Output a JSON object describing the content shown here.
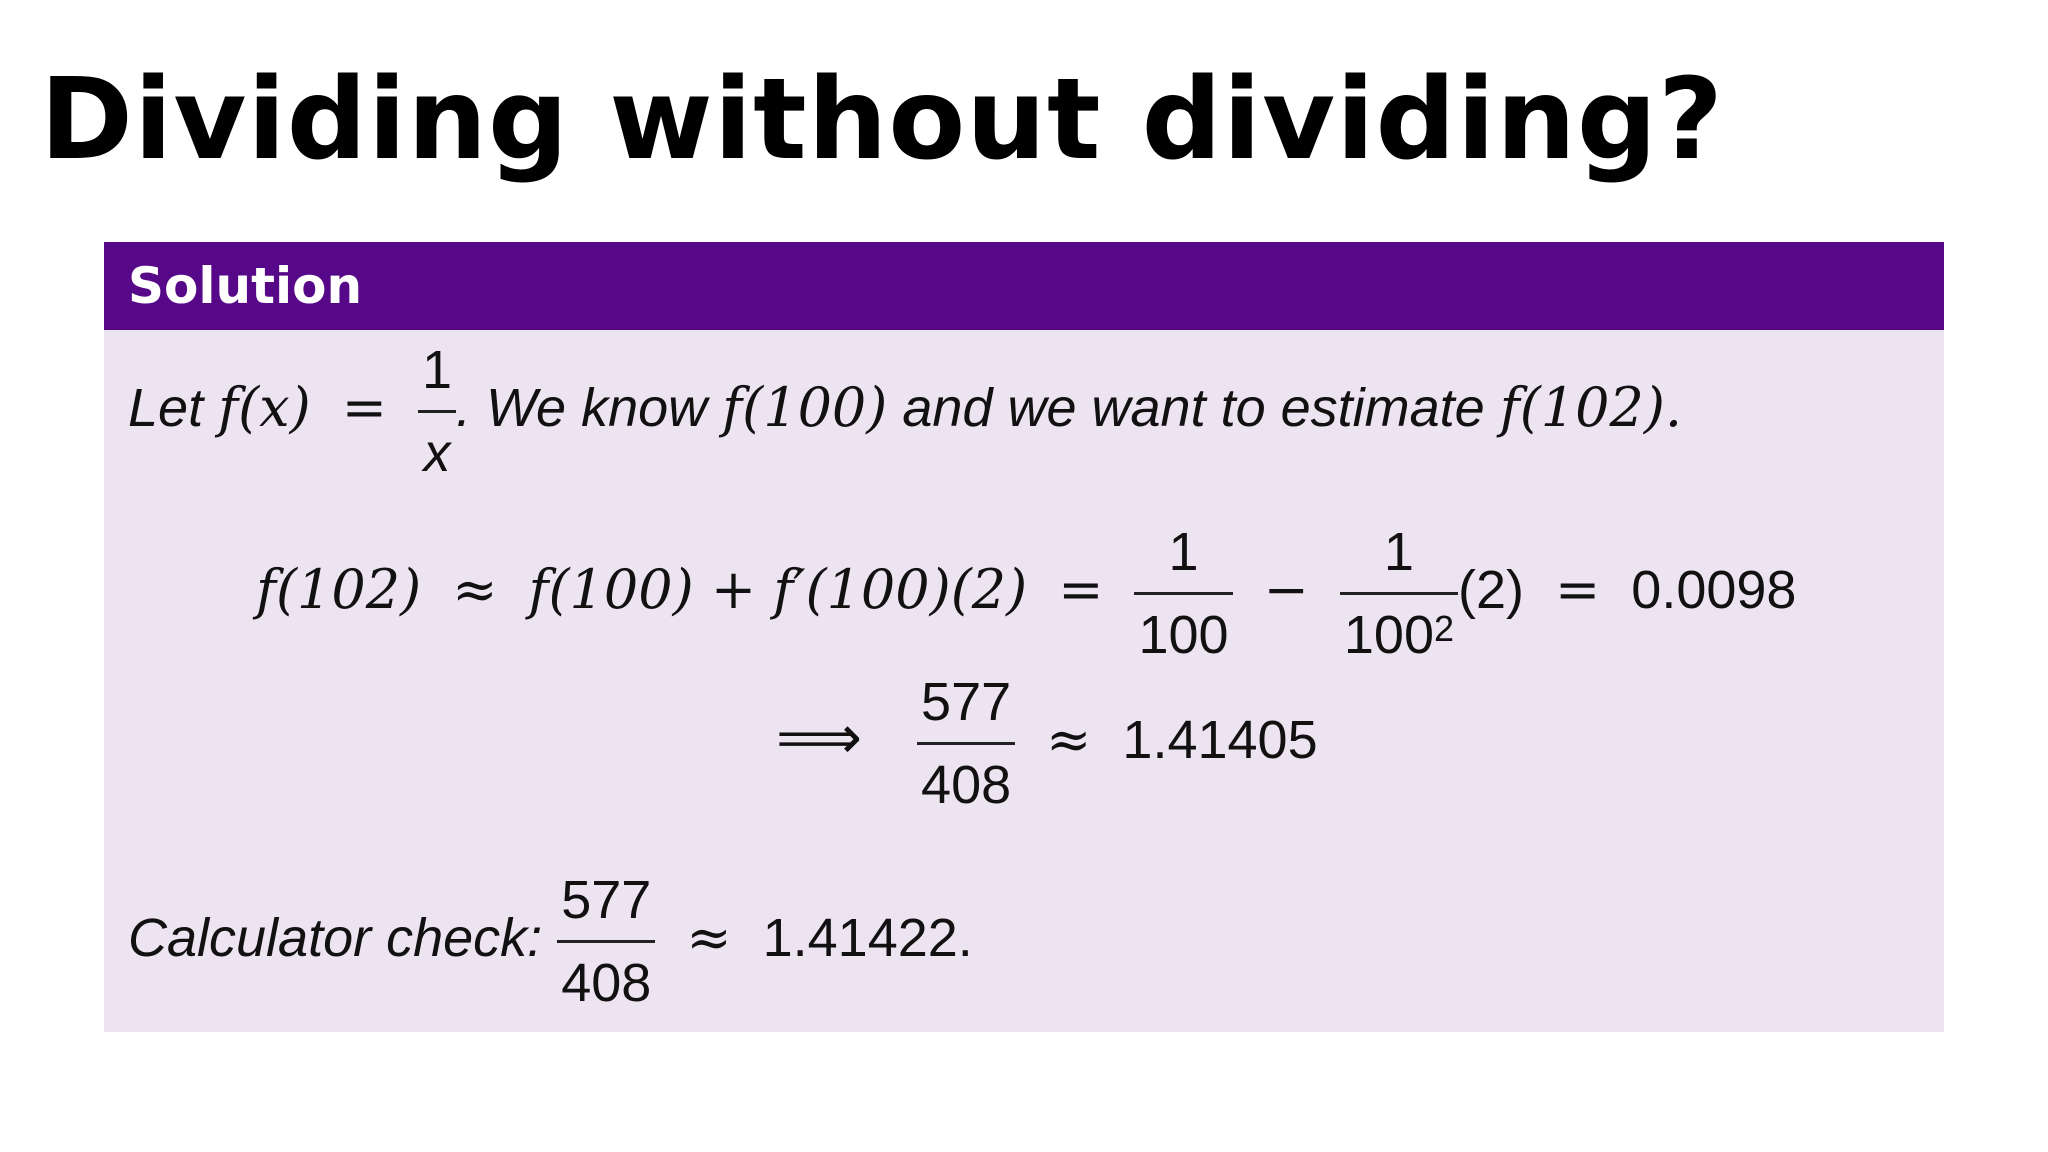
{
  "title": "Dividing without dividing?",
  "block": {
    "header": "Solution",
    "line1": {
      "prefix": "Let",
      "f": "f",
      "x": "(x)",
      "eq": "=",
      "num": "1",
      "den": "x",
      "dot": ".",
      "text_a": "We know",
      "f100": "f(100)",
      "text_b": "and we want to estimate",
      "f102": "f(102)."
    },
    "eq1": {
      "lhs": "f(102)",
      "approx": "≈",
      "t1": "f(100) + f′(100)(2)",
      "eq": "=",
      "a_num": "1",
      "a_den": "100",
      "minus": "−",
      "b_num": "1",
      "b_den": "100",
      "b_exp": "2",
      "tail": "(2)",
      "eq2": "=",
      "result": "0.0098"
    },
    "eq2": {
      "implies": "⟹",
      "num": "577",
      "den": "408",
      "approx": "≈",
      "value": "1.41405"
    },
    "check": {
      "label": "Calculator check:",
      "num": "577",
      "den": "408",
      "approx": "≈",
      "value": "1.41422."
    }
  }
}
